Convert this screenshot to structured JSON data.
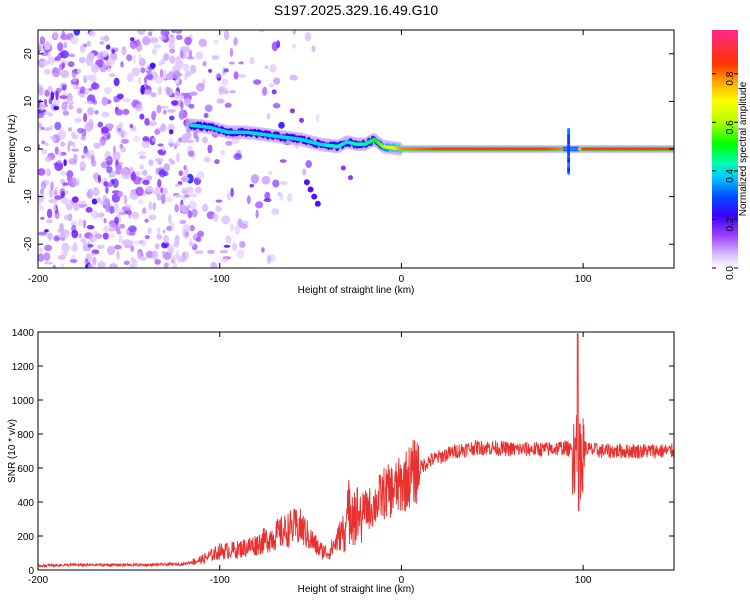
{
  "title": "S197.2025.329.16.49.G10",
  "chart_data": [
    {
      "type": "heatmap",
      "xlabel": "Height of straight line (km)",
      "ylabel": "Frequency (Hz)",
      "xlim": [
        -200,
        150
      ],
      "ylim": [
        -25,
        25
      ],
      "xticks": [
        -200,
        -100,
        0,
        100
      ],
      "yticks": [
        -20,
        -10,
        0,
        10,
        20
      ],
      "ridge": {
        "x": [
          -115,
          -105,
          -95,
          -85,
          -75,
          -65,
          -55,
          -45,
          -35,
          -30,
          -25,
          -20,
          -15,
          -10,
          0,
          20,
          40,
          60,
          80,
          90,
          95,
          100,
          120,
          150
        ],
        "freq": [
          5,
          4.5,
          3.5,
          3.5,
          3,
          2.5,
          2,
          1,
          0.5,
          1.5,
          1,
          1,
          2,
          0.5,
          0,
          0,
          0,
          0,
          0,
          0,
          0,
          0,
          0,
          0
        ],
        "amplitude": [
          0.4,
          0.4,
          0.4,
          0.4,
          0.4,
          0.4,
          0.4,
          0.4,
          0.45,
          0.4,
          0.45,
          0.45,
          0.5,
          0.6,
          0.8,
          0.85,
          0.85,
          0.85,
          0.85,
          0.8,
          0.5,
          0.85,
          0.85,
          0.85
        ]
      }
    },
    {
      "type": "line",
      "xlabel": "Height of straight line (km)",
      "ylabel": "SNR (10 * v/v)",
      "xlim": [
        -200,
        150
      ],
      "ylim": [
        0,
        1400
      ],
      "xticks": [
        -200,
        -100,
        0,
        100
      ],
      "yticks": [
        0,
        200,
        400,
        600,
        800,
        1000,
        1200,
        1400
      ],
      "series": [
        {
          "name": "SNR",
          "color": "#e8312f",
          "x": [
            -200,
            -180,
            -160,
            -140,
            -120,
            -110,
            -100,
            -90,
            -80,
            -70,
            -60,
            -55,
            -50,
            -45,
            -40,
            -35,
            -30,
            -28,
            -25,
            -20,
            -15,
            -10,
            -5,
            0,
            5,
            10,
            15,
            20,
            25,
            30,
            35,
            40,
            50,
            60,
            70,
            80,
            90,
            94,
            96,
            97,
            98,
            100,
            103,
            110,
            120,
            130,
            140,
            150
          ],
          "y": [
            25,
            30,
            30,
            30,
            35,
            60,
            110,
            120,
            150,
            200,
            250,
            250,
            180,
            120,
            100,
            180,
            280,
            400,
            320,
            350,
            380,
            450,
            470,
            500,
            560,
            600,
            640,
            660,
            680,
            700,
            710,
            720,
            720,
            710,
            710,
            710,
            720,
            700,
            700,
            720,
            650,
            720,
            710,
            700,
            700,
            700,
            700,
            700
          ]
        }
      ],
      "spike": {
        "x": 97,
        "high": 1390,
        "low": 350
      }
    }
  ],
  "colorbar": {
    "label": "Normalized spectral amplitude",
    "ticks": [
      "0.0",
      "0.2",
      "0.4",
      "0.6",
      "0.8"
    ]
  }
}
